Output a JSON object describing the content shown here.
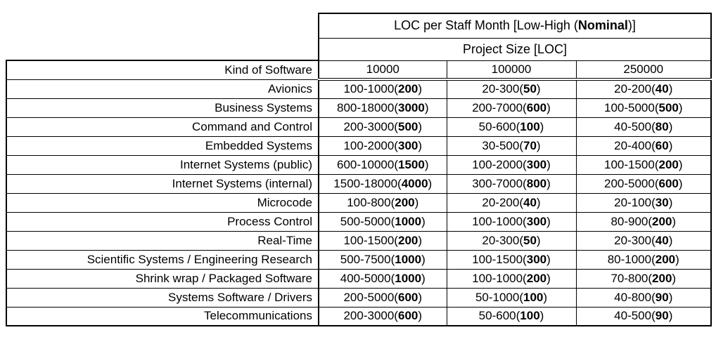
{
  "table": {
    "title": {
      "pre": "LOC per Staff Month [Low-High (",
      "bold": "Nominal",
      "post": ")]"
    },
    "subtitle": "Project Size [LOC]",
    "kind_header": "Kind of Software",
    "size_columns": [
      "10000",
      "100000",
      "250000"
    ],
    "rows": [
      {
        "kind": "Avionics",
        "values": [
          "100-1000(200)",
          "20-300(50)",
          "20-200(40)"
        ]
      },
      {
        "kind": "Business Systems",
        "values": [
          "800-18000(3000)",
          "200-7000(600)",
          "100-5000(500)"
        ]
      },
      {
        "kind": "Command and Control",
        "values": [
          "200-3000(500)",
          "50-600(100)",
          "40-500(80)"
        ]
      },
      {
        "kind": "Embedded Systems",
        "values": [
          "100-2000(300)",
          "30-500(70)",
          "20-400(60)"
        ]
      },
      {
        "kind": "Internet Systems (public)",
        "values": [
          "600-10000(1500)",
          "100-2000(300)",
          "100-1500(200)"
        ]
      },
      {
        "kind": "Internet Systems (internal)",
        "values": [
          "1500-18000(4000)",
          "300-7000(800)",
          "200-5000(600)"
        ]
      },
      {
        "kind": "Microcode",
        "values": [
          "100-800(200)",
          "20-200(40)",
          "20-100(30)"
        ]
      },
      {
        "kind": "Process Control",
        "values": [
          "500-5000(1000)",
          "100-1000(300)",
          "80-900(200)"
        ]
      },
      {
        "kind": "Real-Time",
        "values": [
          "100-1500(200)",
          "20-300(50)",
          "20-300(40)"
        ]
      },
      {
        "kind": "Scientific Systems / Engineering Research",
        "values": [
          "500-7500(1000)",
          "100-1500(300)",
          "80-1000(200)"
        ]
      },
      {
        "kind": "Shrink wrap / Packaged Software",
        "values": [
          "400-5000(1000)",
          "100-1000(200)",
          "70-800(200)"
        ]
      },
      {
        "kind": "Systems Software / Drivers",
        "values": [
          "200-5000(600)",
          "50-1000(100)",
          "40-800(90)"
        ]
      },
      {
        "kind": "Telecommunications",
        "values": [
          "200-3000(600)",
          "50-600(100)",
          "40-500(90)"
        ]
      }
    ]
  }
}
